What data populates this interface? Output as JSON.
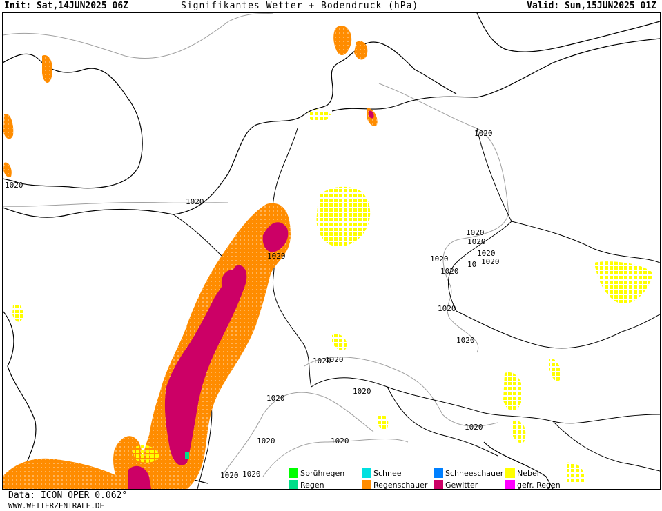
{
  "header": {
    "init": "Init: Sat,14JUN2025 06Z",
    "title": "Signifikantes Wetter + Bodendruck (hPa)",
    "valid": "Valid: Sun,15JUN2025 01Z"
  },
  "isobar_labels": [
    "1020",
    "1020",
    "1020",
    "1020",
    "1020",
    "1020",
    "1020",
    "10",
    "1020",
    "1020",
    "1020",
    "1020",
    "1020",
    "1020",
    "1020",
    "1020",
    "1020",
    "1020",
    "1020",
    "1020",
    "1020"
  ],
  "legend": [
    {
      "label": "Sprühregen",
      "color": "#00ff00"
    },
    {
      "label": "Regen",
      "color": "#00dd88"
    },
    {
      "label": "Schnee",
      "color": "#00e0e0"
    },
    {
      "label": "Regenschauer",
      "color": "#ff8c00"
    },
    {
      "label": "Schneeschauer",
      "color": "#0080ff"
    },
    {
      "label": "Gewitter",
      "color": "#cc0066"
    },
    {
      "label": "Nebel",
      "color": "#ffff00"
    },
    {
      "label": "gefr. Regen",
      "color": "#ff00ff"
    }
  ],
  "colors": {
    "showers": "#ff8c00",
    "thunderstorm": "#cc0066",
    "fog": "#ffff00",
    "rain": "#00dd88",
    "coast": "#000000",
    "border": "#000000",
    "isobar": "#a0a0a0"
  },
  "footer": {
    "data": "Data: ICON OPER 0.062°",
    "site": "WWW.WETTERZENTRALE.DE"
  }
}
